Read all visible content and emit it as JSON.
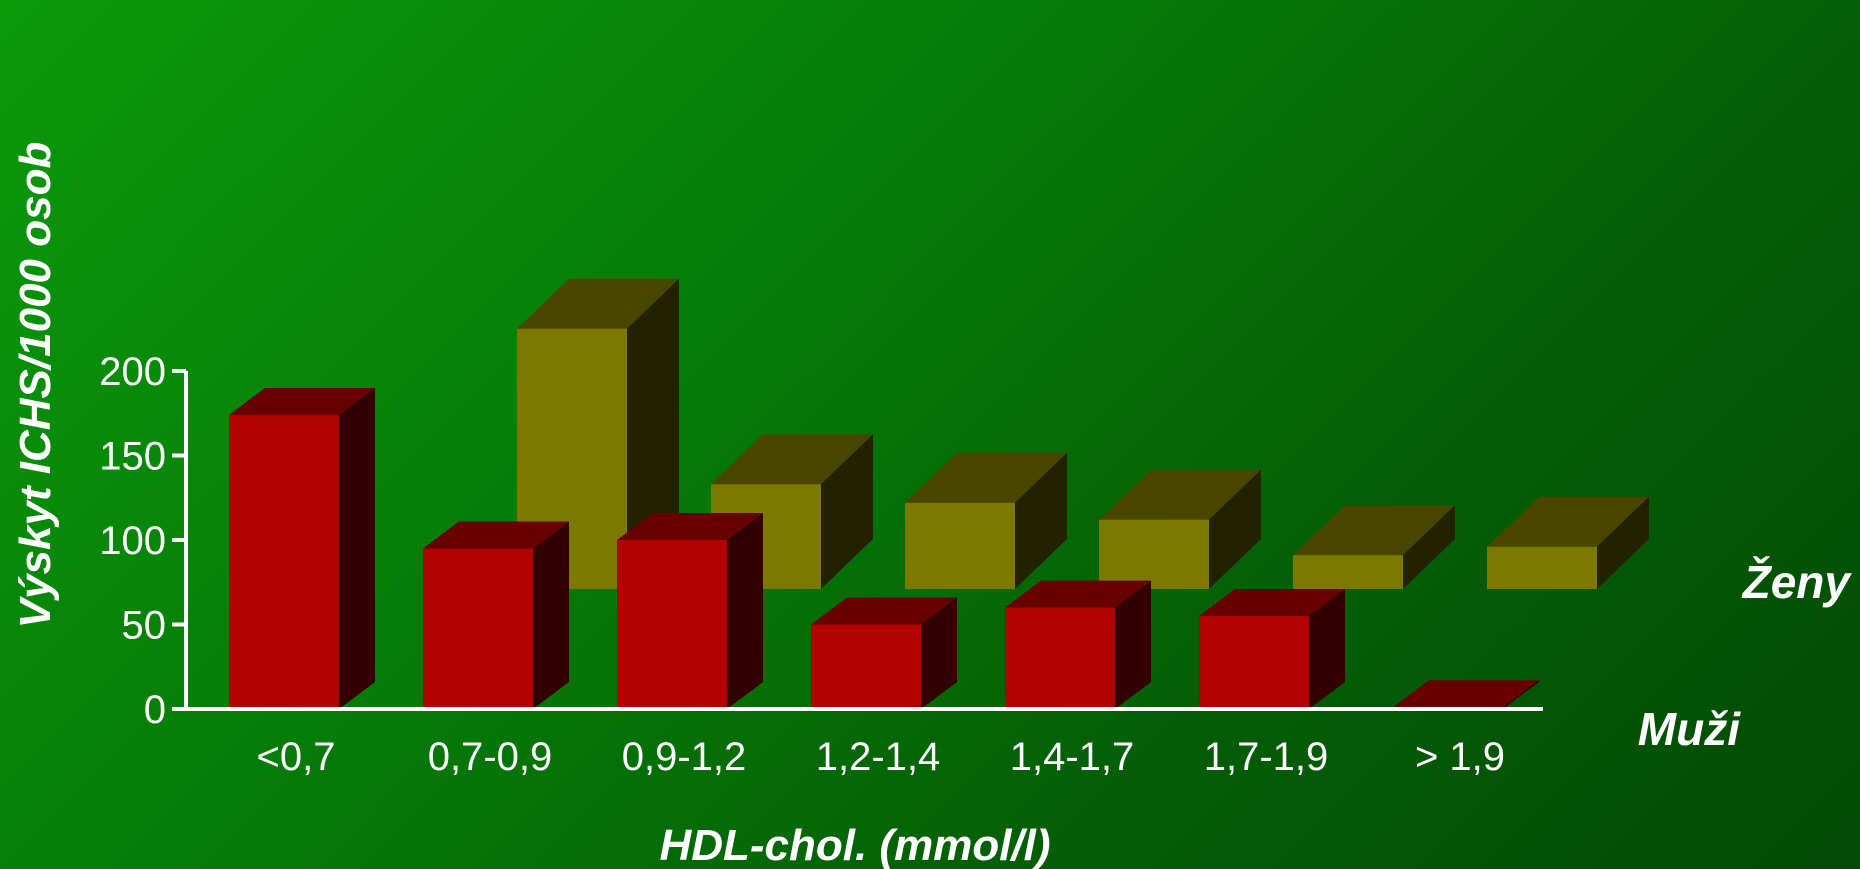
{
  "chart_data": {
    "type": "bar",
    "style": "3d-grouped-depth",
    "ylabel": "Výskyt ICHS/1000 osob",
    "xlabel": "HDL-chol. (mmol/l)",
    "categories": [
      "<0,7",
      "0,7-0,9",
      "0,9-1,2",
      "1,2-1,4",
      "1,4-1,7",
      "1,7-1,9",
      "> 1,9"
    ],
    "ylim": [
      0,
      200
    ],
    "yticks": [
      0,
      50,
      100,
      150,
      200
    ],
    "series": [
      {
        "name": "Muži",
        "color": "#b30000",
        "values": [
          174,
          95,
          100,
          50,
          60,
          55,
          1
        ]
      },
      {
        "name": "Ženy",
        "color": "#7d7800",
        "values": [
          null,
          154,
          62,
          51,
          41,
          20,
          25
        ]
      }
    ]
  }
}
